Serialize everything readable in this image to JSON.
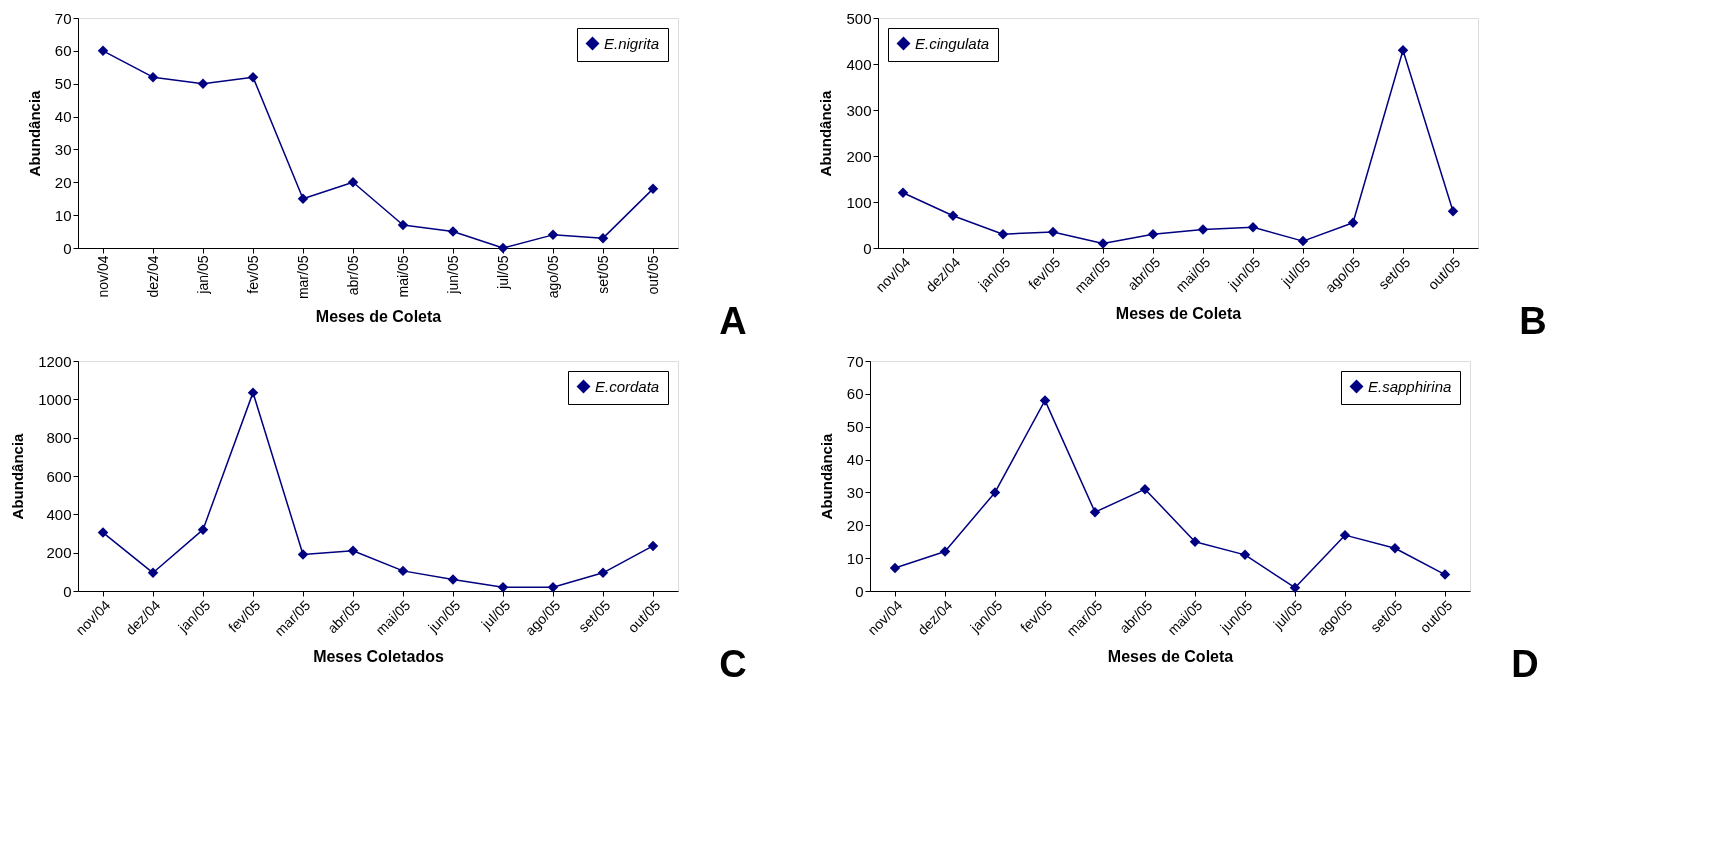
{
  "chart_data": [
    {
      "type": "line",
      "xlabel": "Meses de Coleta",
      "ylabel": "Abundância",
      "categories": [
        "nov/04",
        "dez/04",
        "jan/05",
        "fev/05",
        "mar/05",
        "abr/05",
        "mai/05",
        "jun/05",
        "jul/05",
        "ago/05",
        "set/05",
        "out/05"
      ],
      "series": [
        {
          "name": "E.nigrita",
          "color": "#000080",
          "values": [
            60,
            52,
            50,
            52,
            15,
            20,
            7,
            5,
            0,
            4,
            3,
            18
          ]
        }
      ],
      "ylim": [
        0,
        70
      ],
      "yticks": [
        0,
        10,
        20,
        30,
        40,
        50,
        60,
        70
      ],
      "grid": false,
      "legend": "top right",
      "marker": "diamond",
      "line_style": "solid",
      "annotations": [
        "A"
      ]
    },
    {
      "type": "line",
      "xlabel": "Meses de Coleta",
      "ylabel": "Abundância",
      "categories": [
        "nov/04",
        "dez/04",
        "jan/05",
        "fev/05",
        "mar/05",
        "abr/05",
        "mai/05",
        "jun/05",
        "jul/05",
        "ago/05",
        "set/05",
        "out/05"
      ],
      "series": [
        {
          "name": "E.cingulata",
          "color": "#000080",
          "values": [
            120,
            70,
            30,
            35,
            10,
            30,
            40,
            45,
            15,
            55,
            430,
            80
          ]
        }
      ],
      "ylim": [
        0,
        500
      ],
      "yticks": [
        0,
        100,
        200,
        300,
        400,
        500
      ],
      "grid": false,
      "legend": "top left",
      "marker": "diamond",
      "line_style": "solid",
      "annotations": [
        "B"
      ]
    },
    {
      "type": "line",
      "xlabel": "Meses Coletados",
      "ylabel": "Abundância",
      "categories": [
        "nov/04",
        "dez/04",
        "jan/05",
        "fev/05",
        "mar/05",
        "abr/05",
        "mai/05",
        "jun/05",
        "jul/05",
        "ago/05",
        "set/05",
        "out/05"
      ],
      "series": [
        {
          "name": "E.cordata",
          "color": "#000080",
          "values": [
            305,
            95,
            320,
            1035,
            190,
            210,
            105,
            60,
            20,
            20,
            95,
            235
          ]
        }
      ],
      "ylim": [
        0,
        1200
      ],
      "yticks": [
        0,
        200,
        400,
        600,
        800,
        1000,
        1200
      ],
      "grid": false,
      "legend": "top right",
      "marker": "diamond",
      "line_style": "solid",
      "annotations": [
        "C"
      ]
    },
    {
      "type": "line",
      "xlabel": "Meses de Coleta",
      "ylabel": "Abundância",
      "categories": [
        "nov/04",
        "dez/04",
        "jan/05",
        "fev/05",
        "mar/05",
        "abr/05",
        "mai/05",
        "jun/05",
        "jul/05",
        "ago/05",
        "set/05",
        "out/05"
      ],
      "series": [
        {
          "name": "E.sapphirina",
          "color": "#000080",
          "values": [
            7,
            12,
            30,
            58,
            24,
            31,
            15,
            11,
            1,
            17,
            13,
            5
          ]
        }
      ],
      "ylim": [
        0,
        70
      ],
      "yticks": [
        0,
        10,
        20,
        30,
        40,
        50,
        60,
        70
      ],
      "grid": false,
      "legend": "top right",
      "marker": "diamond",
      "line_style": "solid",
      "annotations": [
        "D"
      ]
    }
  ]
}
